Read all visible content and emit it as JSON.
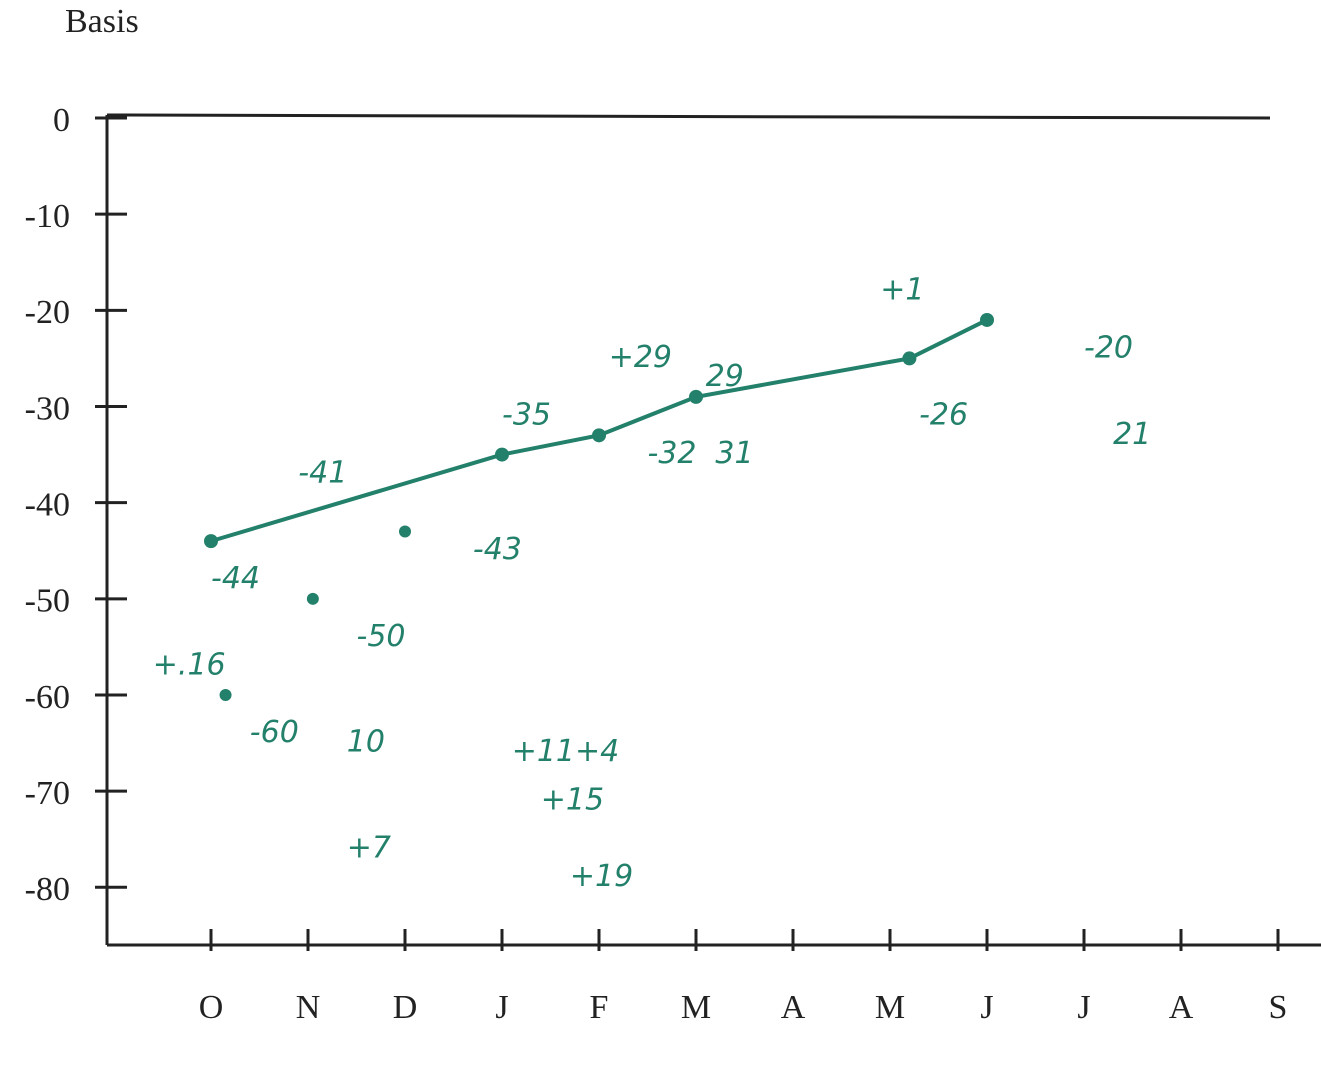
{
  "chart_data": {
    "type": "line",
    "ylabel": "Basis",
    "x_kind": "month",
    "xlim": [
      -1,
      11.5
    ],
    "ylim": [
      -86,
      0
    ],
    "yticks": [
      0,
      -10,
      -20,
      -30,
      -40,
      -50,
      -60,
      -70,
      -80
    ],
    "xticks": [
      {
        "value": 0,
        "label": "O"
      },
      {
        "value": 1,
        "label": "N"
      },
      {
        "value": 2,
        "label": "D"
      },
      {
        "value": 3,
        "label": "J"
      },
      {
        "value": 4,
        "label": "F"
      },
      {
        "value": 5,
        "label": "M"
      },
      {
        "value": 6,
        "label": "A"
      },
      {
        "value": 7,
        "label": "M"
      },
      {
        "value": 8,
        "label": "J"
      },
      {
        "value": 9,
        "label": "J"
      },
      {
        "value": 10,
        "label": "A"
      },
      {
        "value": 11,
        "label": "S"
      }
    ],
    "series": [
      {
        "color": "#23806a",
        "style": "line",
        "x": [
          0,
          3,
          4,
          5,
          7.2,
          8
        ],
        "values": [
          -44,
          -35,
          -33,
          -29,
          -25,
          -21
        ]
      },
      {
        "color": "#23806a",
        "style": "dots",
        "x": [
          0.15,
          1.05,
          2
        ],
        "values": [
          -60,
          -50,
          -43
        ]
      }
    ],
    "annotations": [
      {
        "text": "-44",
        "x": 0,
        "y": -48
      },
      {
        "text": "+.16",
        "x": -0.6,
        "y": -57
      },
      {
        "text": "-60",
        "x": 0.4,
        "y": -64
      },
      {
        "text": "-41",
        "x": 0.9,
        "y": -37
      },
      {
        "text": "-50",
        "x": 1.5,
        "y": -54
      },
      {
        "text": "-43",
        "x": 2.7,
        "y": -45
      },
      {
        "text": "-35",
        "x": 3.0,
        "y": -31
      },
      {
        "text": "+29",
        "x": 4.1,
        "y": -25
      },
      {
        "text": "-32",
        "x": 4.5,
        "y": -35
      },
      {
        "text": "29",
        "x": 5.1,
        "y": -27
      },
      {
        "text": "31",
        "x": 5.2,
        "y": -35
      },
      {
        "text": "+1",
        "x": 6.9,
        "y": -18
      },
      {
        "text": "-26",
        "x": 7.3,
        "y": -31
      },
      {
        "text": "-20",
        "x": 9.0,
        "y": -24
      },
      {
        "text": "21",
        "x": 9.3,
        "y": -33
      },
      {
        "text": "10",
        "x": 1.4,
        "y": -65
      },
      {
        "text": "+7",
        "x": 1.4,
        "y": -76
      },
      {
        "text": "+11+4",
        "x": 3.1,
        "y": -66
      },
      {
        "text": "+15",
        "x": 3.4,
        "y": -71
      },
      {
        "text": "+19",
        "x": 3.7,
        "y": -79
      }
    ]
  }
}
